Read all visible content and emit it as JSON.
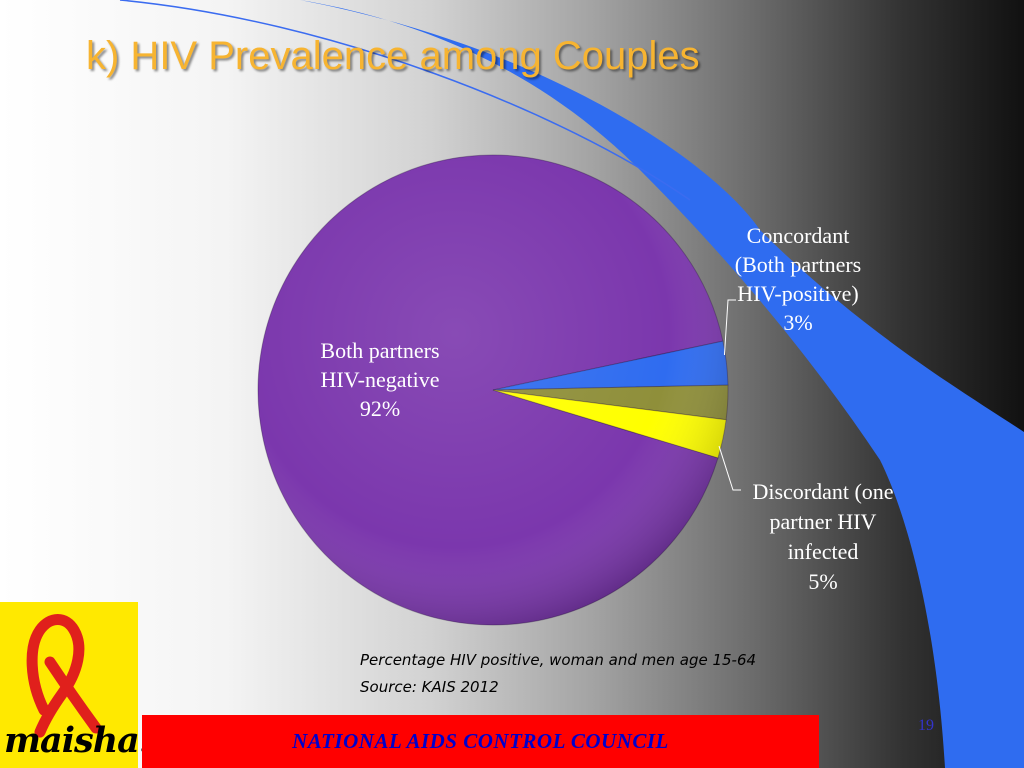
{
  "title": "k)  HIV Prevalence among Couples",
  "colors": {
    "title": "#f7b431",
    "negative": "#7b37ad",
    "concordant": "#2f6cf0",
    "discordant_olive": "#8f8f3a",
    "discordant_yellow": "#ffff00",
    "footer_bar": "#ff0000",
    "footer_text": "#0000cc",
    "logo_bg": "#ffe900",
    "ribbon": "#e0201c"
  },
  "chart_data": {
    "type": "pie",
    "categories": [
      "Both partners HIV-negative",
      "Concordant (Both partners HIV-positive)",
      "Discordant (one partner HIV infected"
    ],
    "values": [
      92,
      3,
      5
    ],
    "labels": {
      "negative": [
        "Both partners",
        "HIV-negative",
        "92%"
      ],
      "concordant": [
        "Concordant",
        "(Both partners",
        "HIV-positive)",
        "3%"
      ],
      "discordant": [
        "Discordant (one",
        "partner HIV",
        "infected",
        "5%"
      ]
    }
  },
  "notes": {
    "line1": "Percentage HIV positive, woman and men age 15-64",
    "line2": "Source: KAIS 2012"
  },
  "logo": {
    "text": "maisha!",
    "icon": "red-ribbon-icon"
  },
  "footer": {
    "org": "NATIONAL AIDS CONTROL COUNCIL",
    "slide_number": "19"
  }
}
